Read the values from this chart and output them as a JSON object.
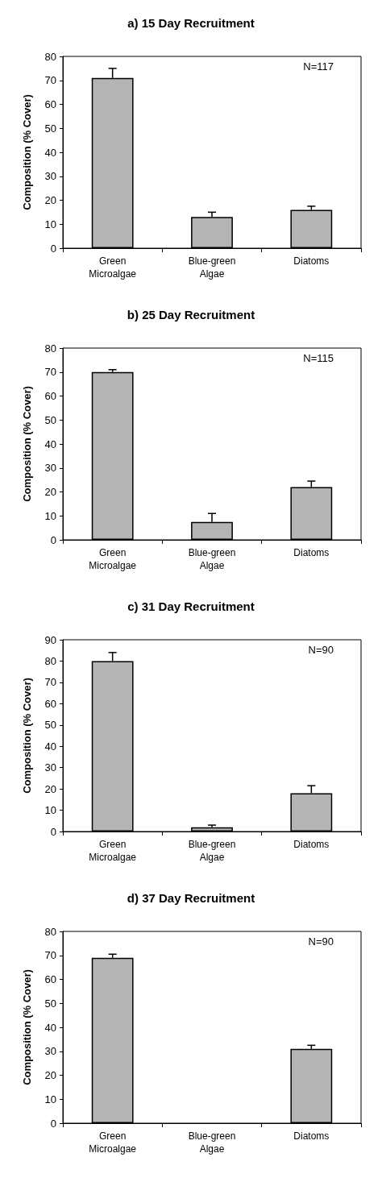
{
  "chart_data": [
    {
      "type": "bar",
      "title": "a) 15 Day Recruitment",
      "ylabel": "Composition (% Cover)",
      "categories": [
        "Green\nMicroalgae",
        "Blue-green\nAlgae",
        "Diatoms"
      ],
      "values": [
        71,
        13,
        16
      ],
      "errors": [
        4,
        2,
        1.5
      ],
      "color": "#b4b4b4",
      "ylim": [
        0,
        80
      ],
      "yticks": [
        0,
        10,
        20,
        30,
        40,
        50,
        60,
        70,
        80
      ],
      "annotations": [
        "N=117"
      ]
    },
    {
      "type": "bar",
      "title": "b) 25 Day Recruitment",
      "ylabel": "Composition (% Cover)",
      "categories": [
        "Green\nMicroalgae",
        "Blue-green\nAlgae",
        "Diatoms"
      ],
      "values": [
        70,
        7.5,
        22
      ],
      "errors": [
        1,
        3.5,
        2.5
      ],
      "color": "#b4b4b4",
      "ylim": [
        0,
        80
      ],
      "yticks": [
        0,
        10,
        20,
        30,
        40,
        50,
        60,
        70,
        80
      ],
      "annotations": [
        "N=115"
      ]
    },
    {
      "type": "bar",
      "title": "c) 31 Day Recruitment",
      "ylabel": "Composition (% Cover)",
      "categories": [
        "Green\nMicroalgae",
        "Blue-green\nAlgae",
        "Diatoms"
      ],
      "values": [
        80,
        2,
        18
      ],
      "errors": [
        4,
        1,
        3.5
      ],
      "color": "#b4b4b4",
      "ylim": [
        0,
        90
      ],
      "yticks": [
        0,
        10,
        20,
        30,
        40,
        50,
        60,
        70,
        80,
        90
      ],
      "annotations": [
        "N=90"
      ]
    },
    {
      "type": "bar",
      "title": "d) 37 Day Recruitment",
      "ylabel": "Composition (% Cover)",
      "categories": [
        "Green\nMicroalgae",
        "Blue-green\nAlgae",
        "Diatoms"
      ],
      "values": [
        69,
        0,
        31
      ],
      "errors": [
        1.5,
        null,
        1.5
      ],
      "color": "#b4b4b4",
      "ylim": [
        0,
        80
      ],
      "yticks": [
        0,
        10,
        20,
        30,
        40,
        50,
        60,
        70,
        80
      ],
      "annotations": [
        "N=90"
      ]
    }
  ]
}
